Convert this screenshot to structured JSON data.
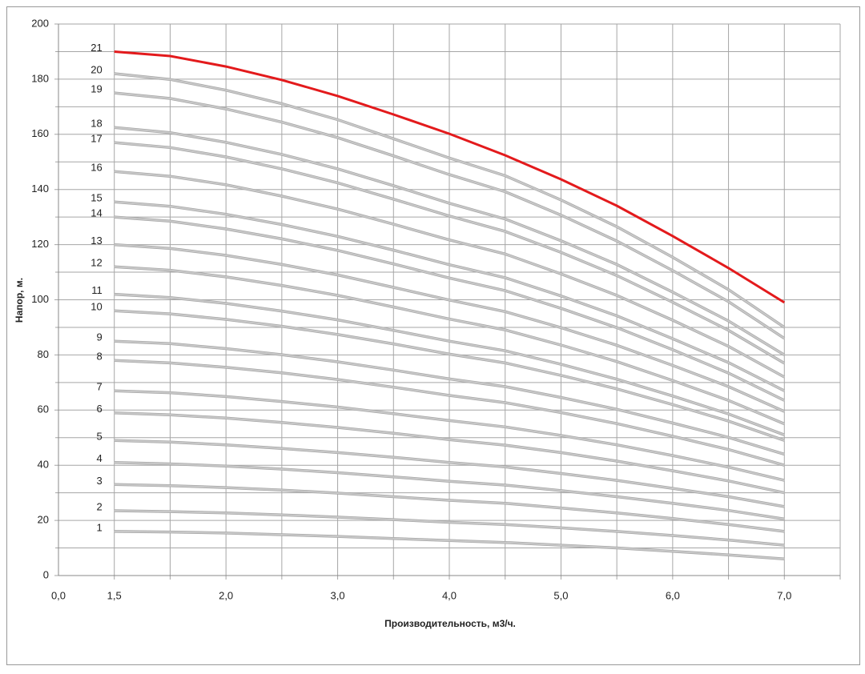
{
  "chart_data": {
    "type": "line",
    "x_label": "Производительность, м3/ч.",
    "y_label": "Напор, м.",
    "categories": [
      "0,0",
      "1,5",
      null,
      "2,0",
      null,
      "3,0",
      null,
      "4,0",
      null,
      "5,0",
      null,
      "6,0",
      null,
      "7,0",
      null
    ],
    "ylim": [
      0,
      200
    ],
    "yticks": [
      0,
      20,
      40,
      60,
      80,
      100,
      120,
      140,
      160,
      180,
      200
    ],
    "y_minor_ticks": [
      10,
      30,
      50,
      70,
      90,
      110,
      130,
      150,
      170,
      190
    ],
    "grid": true,
    "series": [
      {
        "name": "1",
        "color": "#c8c8c8",
        "values": [
          null,
          16,
          15.8,
          15.4,
          14.8,
          14.2,
          13.4,
          12.7,
          12.0,
          11.0,
          10.0,
          8.8,
          7.5,
          6,
          null
        ]
      },
      {
        "name": "2",
        "color": "#c8c8c8",
        "values": [
          null,
          23.5,
          23.2,
          22.7,
          22.0,
          21.2,
          20.3,
          19.3,
          18.5,
          17.3,
          16.0,
          14.5,
          12.9,
          11,
          null
        ]
      },
      {
        "name": "3",
        "color": "#c8c8c8",
        "values": [
          null,
          33,
          32.6,
          31.9,
          31.0,
          29.9,
          28.6,
          27.3,
          26.2,
          24.5,
          22.7,
          20.7,
          18.5,
          16,
          null
        ]
      },
      {
        "name": "4",
        "color": "#c8c8c8",
        "values": [
          null,
          41,
          40.5,
          39.7,
          38.6,
          37.3,
          35.8,
          34.2,
          32.8,
          30.8,
          28.6,
          26.2,
          23.6,
          20.5,
          null
        ]
      },
      {
        "name": "5",
        "color": "#c8c8c8",
        "values": [
          null,
          49,
          48.4,
          47.4,
          46.1,
          44.6,
          42.9,
          41.0,
          39.4,
          37.0,
          34.5,
          31.6,
          28.6,
          25,
          null
        ]
      },
      {
        "name": "6",
        "color": "#c8c8c8",
        "values": [
          null,
          59,
          58.3,
          57.1,
          55.5,
          53.7,
          51.6,
          49.3,
          47.3,
          44.6,
          41.5,
          38.0,
          34.3,
          30,
          null
        ]
      },
      {
        "name": "7",
        "color": "#c8c8c8",
        "values": [
          null,
          67,
          66.3,
          64.9,
          63.1,
          61.1,
          58.7,
          56.2,
          53.9,
          50.8,
          47.4,
          43.5,
          39.3,
          34.5,
          null
        ]
      },
      {
        "name": "8",
        "color": "#c8c8c8",
        "values": [
          null,
          78,
          77.1,
          75.5,
          73.5,
          71.1,
          68.3,
          65.3,
          62.7,
          59.1,
          55.1,
          50.5,
          45.7,
          40,
          null
        ]
      },
      {
        "name": "9",
        "color": "#c8c8c8",
        "values": [
          null,
          85,
          84.1,
          82.3,
          80.1,
          77.5,
          74.5,
          71.3,
          68.5,
          64.6,
          60.3,
          55.3,
          50.1,
          44,
          null
        ]
      },
      {
        "name": "10",
        "color": "#c8c8c8",
        "values": [
          null,
          96,
          94.9,
          92.9,
          90.4,
          87.4,
          84.0,
          80.3,
          77.1,
          72.6,
          67.7,
          62.0,
          56.0,
          49,
          null
        ]
      },
      {
        "name": "11",
        "color": "#c8c8c8",
        "values": [
          null,
          102,
          100.8,
          98.7,
          95.9,
          92.7,
          88.9,
          85.0,
          81.5,
          76.6,
          71.2,
          65.1,
          58.6,
          51,
          null
        ]
      },
      {
        "name": "12",
        "color": "#c8c8c8",
        "values": [
          null,
          112,
          110.7,
          108.3,
          105.2,
          101.6,
          97.4,
          93.0,
          89.1,
          83.6,
          77.6,
          70.7,
          63.5,
          55,
          null
        ]
      },
      {
        "name": "13",
        "color": "#c8c8c8",
        "values": [
          null,
          120,
          118.6,
          116.1,
          112.8,
          109.0,
          104.5,
          99.9,
          95.7,
          89.9,
          83.5,
          76.2,
          68.5,
          59.5,
          null
        ]
      },
      {
        "name": "14",
        "color": "#c8c8c8",
        "values": [
          null,
          130,
          128.5,
          125.7,
          122.1,
          117.9,
          113.0,
          107.9,
          103.3,
          96.9,
          89.9,
          81.9,
          73.4,
          63.5,
          null
        ]
      },
      {
        "name": "15",
        "color": "#c8c8c8",
        "values": [
          null,
          135.5,
          133.9,
          131.0,
          127.3,
          123.0,
          118.0,
          112.7,
          108.0,
          101.4,
          94.2,
          85.9,
          77.2,
          67,
          null
        ]
      },
      {
        "name": "16",
        "color": "#c8c8c8",
        "values": [
          null,
          146.5,
          144.8,
          141.7,
          137.6,
          132.9,
          127.4,
          121.7,
          116.6,
          109.4,
          101.6,
          92.6,
          83.1,
          72,
          null
        ]
      },
      {
        "name": "17",
        "color": "#c8c8c8",
        "values": [
          null,
          157,
          155.2,
          151.8,
          147.5,
          142.4,
          136.5,
          130.4,
          124.8,
          117.2,
          108.8,
          99.1,
          88.9,
          77,
          null
        ]
      },
      {
        "name": "18",
        "color": "#c8c8c8",
        "values": [
          null,
          162.5,
          160.6,
          157.1,
          152.7,
          147.5,
          141.4,
          135.0,
          129.3,
          121.4,
          112.8,
          102.8,
          92.3,
          80,
          null
        ]
      },
      {
        "name": "19",
        "color": "#c8c8c8",
        "values": [
          null,
          175,
          173.0,
          169.2,
          164.4,
          158.8,
          152.2,
          145.4,
          139.2,
          130.7,
          121.3,
          110.6,
          99.3,
          86,
          null
        ]
      },
      {
        "name": "20",
        "color": "#c8c8c8",
        "values": [
          null,
          182,
          179.9,
          176.0,
          171.1,
          165.3,
          158.4,
          151.4,
          145.0,
          136.2,
          126.5,
          115.4,
          103.7,
          90,
          null
        ]
      },
      {
        "name": "21",
        "color": "#e31a1c",
        "values": [
          null,
          190,
          188.4,
          184.6,
          179.7,
          173.9,
          167.2,
          160.2,
          152.4,
          143.7,
          134.1,
          123.1,
          111.5,
          99,
          null
        ]
      }
    ]
  }
}
